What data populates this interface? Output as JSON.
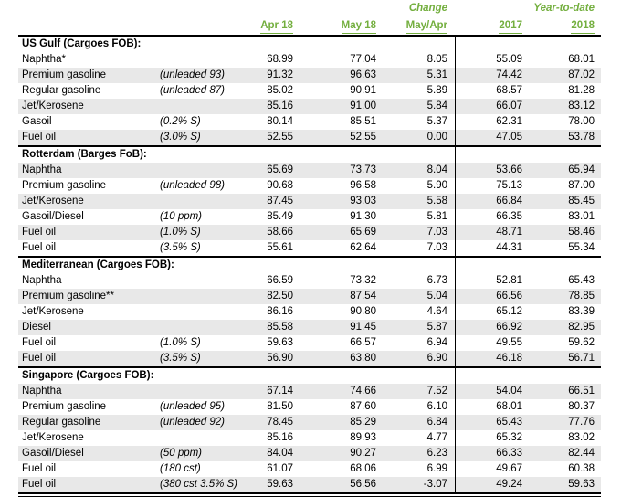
{
  "accent_green": "#74AF3F",
  "stripe_gray": "#E8E8E8",
  "header": {
    "change_label": "Change",
    "ytd_label": "Year-to-date",
    "columns": [
      "Apr 18",
      "May 18",
      "May/Apr",
      "2017",
      "2018"
    ]
  },
  "sections": [
    {
      "title": "US Gulf (Cargoes FOB):",
      "rows": [
        {
          "product": "Naphtha*",
          "spec": "",
          "apr": "68.99",
          "may": "77.04",
          "chg": "8.05",
          "y2017": "55.09",
          "y2018": "68.01",
          "shaded": false
        },
        {
          "product": "Premium gasoline",
          "spec": "(unleaded 93)",
          "apr": "91.32",
          "may": "96.63",
          "chg": "5.31",
          "y2017": "74.42",
          "y2018": "87.02",
          "shaded": true
        },
        {
          "product": "Regular gasoline",
          "spec": "(unleaded 87)",
          "apr": "85.02",
          "may": "90.91",
          "chg": "5.89",
          "y2017": "68.57",
          "y2018": "81.28",
          "shaded": false
        },
        {
          "product": "Jet/Kerosene",
          "spec": "",
          "apr": "85.16",
          "may": "91.00",
          "chg": "5.84",
          "y2017": "66.07",
          "y2018": "83.12",
          "shaded": true
        },
        {
          "product": "Gasoil",
          "spec": "(0.2% S)",
          "apr": "80.14",
          "may": "85.51",
          "chg": "5.37",
          "y2017": "62.31",
          "y2018": "78.00",
          "shaded": false
        },
        {
          "product": "Fuel oil",
          "spec": "(3.0% S)",
          "apr": "52.55",
          "may": "52.55",
          "chg": "0.00",
          "y2017": "47.05",
          "y2018": "53.78",
          "shaded": true
        }
      ]
    },
    {
      "title": "Rotterdam (Barges FoB):",
      "rows": [
        {
          "product": "Naphtha",
          "spec": "",
          "apr": "65.69",
          "may": "73.73",
          "chg": "8.04",
          "y2017": "53.66",
          "y2018": "65.94",
          "shaded": true
        },
        {
          "product": "Premium gasoline",
          "spec": "(unleaded 98)",
          "apr": "90.68",
          "may": "96.58",
          "chg": "5.90",
          "y2017": "75.13",
          "y2018": "87.00",
          "shaded": false
        },
        {
          "product": "Jet/Kerosene",
          "spec": "",
          "apr": "87.45",
          "may": "93.03",
          "chg": "5.58",
          "y2017": "66.84",
          "y2018": "85.45",
          "shaded": true
        },
        {
          "product": "Gasoil/Diesel",
          "spec": "(10 ppm)",
          "apr": "85.49",
          "may": "91.30",
          "chg": "5.81",
          "y2017": "66.35",
          "y2018": "83.01",
          "shaded": false
        },
        {
          "product": "Fuel oil",
          "spec": "(1.0% S)",
          "apr": "58.66",
          "may": "65.69",
          "chg": "7.03",
          "y2017": "48.71",
          "y2018": "58.46",
          "shaded": true
        },
        {
          "product": "Fuel oil",
          "spec": "(3.5% S)",
          "apr": "55.61",
          "may": "62.64",
          "chg": "7.03",
          "y2017": "44.31",
          "y2018": "55.34",
          "shaded": false
        }
      ]
    },
    {
      "title": "Mediterranean (Cargoes FOB):",
      "rows": [
        {
          "product": "Naphtha",
          "spec": "",
          "apr": "66.59",
          "may": "73.32",
          "chg": "6.73",
          "y2017": "52.81",
          "y2018": "65.43",
          "shaded": false
        },
        {
          "product": "Premium gasoline**",
          "spec": "",
          "apr": "82.50",
          "may": "87.54",
          "chg": "5.04",
          "y2017": "66.56",
          "y2018": "78.85",
          "shaded": true
        },
        {
          "product": "Jet/Kerosene",
          "spec": "",
          "apr": "86.16",
          "may": "90.80",
          "chg": "4.64",
          "y2017": "65.12",
          "y2018": "83.39",
          "shaded": false
        },
        {
          "product": "Diesel",
          "spec": "",
          "apr": "85.58",
          "may": "91.45",
          "chg": "5.87",
          "y2017": "66.92",
          "y2018": "82.95",
          "shaded": true
        },
        {
          "product": "Fuel oil",
          "spec": "(1.0% S)",
          "apr": "59.63",
          "may": "66.57",
          "chg": "6.94",
          "y2017": "49.55",
          "y2018": "59.62",
          "shaded": false
        },
        {
          "product": "Fuel oil",
          "spec": "(3.5% S)",
          "apr": "56.90",
          "may": "63.80",
          "chg": "6.90",
          "y2017": "46.18",
          "y2018": "56.71",
          "shaded": true
        }
      ]
    },
    {
      "title": "Singapore (Cargoes FOB):",
      "rows": [
        {
          "product": "Naphtha",
          "spec": "",
          "apr": "67.14",
          "may": "74.66",
          "chg": "7.52",
          "y2017": "54.04",
          "y2018": "66.51",
          "shaded": true
        },
        {
          "product": "Premium gasoline",
          "spec": "(unleaded 95)",
          "apr": "81.50",
          "may": "87.60",
          "chg": "6.10",
          "y2017": "68.01",
          "y2018": "80.37",
          "shaded": false
        },
        {
          "product": "Regular gasoline",
          "spec": "(unleaded 92)",
          "apr": "78.45",
          "may": "85.29",
          "chg": "6.84",
          "y2017": "65.43",
          "y2018": "77.76",
          "shaded": true
        },
        {
          "product": "Jet/Kerosene",
          "spec": "",
          "apr": "85.16",
          "may": "89.93",
          "chg": "4.77",
          "y2017": "65.32",
          "y2018": "83.02",
          "shaded": false
        },
        {
          "product": "Gasoil/Diesel",
          "spec": "(50 ppm)",
          "apr": "84.04",
          "may": "90.27",
          "chg": "6.23",
          "y2017": "66.33",
          "y2018": "82.44",
          "shaded": true
        },
        {
          "product": "Fuel oil",
          "spec": "(180 cst)",
          "apr": "61.07",
          "may": "68.06",
          "chg": "6.99",
          "y2017": "49.67",
          "y2018": "60.38",
          "shaded": false
        },
        {
          "product": "Fuel oil",
          "spec": "(380 cst 3.5% S)",
          "apr": "59.63",
          "may": "56.56",
          "chg": "-3.07",
          "y2017": "49.24",
          "y2018": "59.63",
          "shaded": true
        }
      ]
    }
  ]
}
